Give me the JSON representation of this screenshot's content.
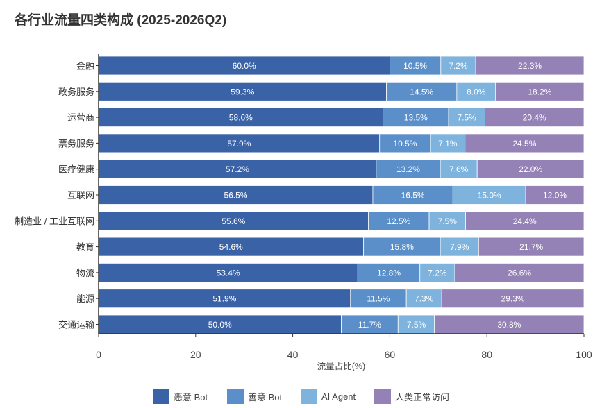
{
  "title": "各行业流量四类构成 (2025-2026Q2)",
  "chart_data": {
    "type": "bar",
    "orientation": "horizontal",
    "stacked": true,
    "title": "各行业流量四类构成 (2025-2026Q2)",
    "xlabel": "流量占比(%)",
    "ylabel": "",
    "xlim": [
      0,
      100
    ],
    "xticks": [
      0,
      20,
      40,
      60,
      80,
      100
    ],
    "grid": false,
    "legend_position": "bottom",
    "categories": [
      "金融",
      "政务服务",
      "运营商",
      "票务服务",
      "医疗健康",
      "互联网",
      "制造业 / 工业互联网",
      "教育",
      "物流",
      "能源",
      "交通运输"
    ],
    "series": [
      {
        "name": "恶意 Bot",
        "color": "#3a62a7",
        "values": [
          60.0,
          59.3,
          58.6,
          57.9,
          57.2,
          56.5,
          55.6,
          54.6,
          53.4,
          51.9,
          50.0
        ]
      },
      {
        "name": "善意 Bot",
        "color": "#5b8fc9",
        "values": [
          10.5,
          14.5,
          13.5,
          10.5,
          13.2,
          16.5,
          12.5,
          15.8,
          12.8,
          11.5,
          11.7
        ]
      },
      {
        "name": "AI Agent",
        "color": "#7eb3de",
        "values": [
          7.2,
          8.0,
          7.5,
          7.1,
          7.6,
          15.0,
          7.5,
          7.9,
          7.2,
          7.3,
          7.5
        ]
      },
      {
        "name": "人类正常访问",
        "color": "#9481b5",
        "values": [
          22.3,
          18.2,
          20.4,
          24.5,
          22.0,
          12.0,
          24.4,
          21.7,
          26.6,
          29.3,
          30.8
        ]
      }
    ]
  },
  "legend": [
    {
      "label": "恶意 Bot",
      "color": "#3a62a7"
    },
    {
      "label": "善意 Bot",
      "color": "#5b8fc9"
    },
    {
      "label": "AI Agent",
      "color": "#7eb3de"
    },
    {
      "label": "人类正常访问",
      "color": "#9481b5"
    }
  ]
}
